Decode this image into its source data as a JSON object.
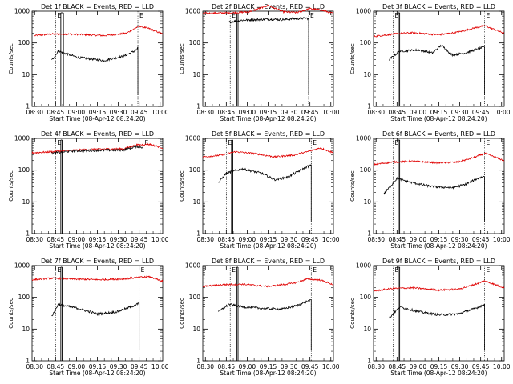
{
  "chart_data": [
    {
      "type": "line",
      "title": "Det 1f BLACK = Events, RED = LLD",
      "ylabel": "Counts/sec",
      "xlabel": "Start Time (08-Apr-12 08:24:20)",
      "xticks": [
        "08:30",
        "08:45",
        "09:00",
        "09:15",
        "09:30",
        "09:45",
        "10:00"
      ],
      "yticks": [
        "1",
        "10",
        "100",
        "1000"
      ],
      "ylim": [
        1,
        1000
      ],
      "yscale": "log",
      "series": [
        {
          "color": "#e00000",
          "anchors": [
            [
              0.02,
              170
            ],
            [
              0.15,
              190
            ],
            [
              0.3,
              190
            ],
            [
              0.55,
              170
            ],
            [
              0.72,
              200
            ],
            [
              0.82,
              340
            ],
            [
              0.9,
              280
            ],
            [
              1.0,
              190
            ]
          ]
        },
        {
          "color": "#000000",
          "anchors": [
            [
              0.15,
              28
            ],
            [
              0.2,
              55
            ],
            [
              0.35,
              35
            ],
            [
              0.55,
              28
            ],
            [
              0.7,
              38
            ],
            [
              0.8,
              60
            ],
            [
              0.81,
              70
            ]
          ]
        }
      ],
      "markers": [
        0.18,
        0.22,
        0.24,
        0.81
      ]
    },
    {
      "type": "line",
      "title": "Det 2f BLACK = Events, RED = LLD",
      "ylabel": "Counts/sec",
      "xlabel": "Start Time (08-Apr-12 08:24:20)",
      "xticks": [
        "08:30",
        "08:45",
        "09:00",
        "09:15",
        "09:30",
        "09:45",
        "10:00"
      ],
      "yticks": [
        "1",
        "10",
        "100",
        "1000"
      ],
      "ylim": [
        1,
        1000
      ],
      "yscale": "log",
      "series": [
        {
          "color": "#e00000",
          "anchors": [
            [
              0.0,
              860
            ],
            [
              0.2,
              880
            ],
            [
              0.35,
              950
            ],
            [
              0.5,
              1500
            ],
            [
              0.62,
              950
            ],
            [
              0.72,
              900
            ],
            [
              0.82,
              1200
            ],
            [
              0.9,
              1100
            ],
            [
              1.0,
              850
            ]
          ]
        },
        {
          "color": "#000000",
          "anchors": [
            [
              0.2,
              450
            ],
            [
              0.3,
              520
            ],
            [
              0.5,
              560
            ],
            [
              0.6,
              540
            ],
            [
              0.7,
              580
            ],
            [
              0.8,
              600
            ],
            [
              0.81,
              550
            ]
          ]
        }
      ],
      "markers": [
        0.21,
        0.26,
        0.27,
        0.81
      ]
    },
    {
      "type": "line",
      "title": "Det 3f BLACK = Events, RED = LLD",
      "ylabel": "Counts/sec",
      "xlabel": "Start Time (08-Apr-12 08:24:20)",
      "xticks": [
        "08:30",
        "08:45",
        "09:00",
        "09:15",
        "09:30",
        "09:45",
        "10:00"
      ],
      "yticks": [
        "1",
        "10",
        "100",
        "1000"
      ],
      "ylim": [
        1,
        1000
      ],
      "yscale": "log",
      "series": [
        {
          "color": "#e00000",
          "anchors": [
            [
              0.0,
              160
            ],
            [
              0.15,
              190
            ],
            [
              0.3,
              210
            ],
            [
              0.5,
              180
            ],
            [
              0.65,
              220
            ],
            [
              0.78,
              300
            ],
            [
              0.85,
              350
            ],
            [
              1.0,
              200
            ]
          ]
        },
        {
          "color": "#000000",
          "anchors": [
            [
              0.12,
              30
            ],
            [
              0.2,
              55
            ],
            [
              0.35,
              60
            ],
            [
              0.45,
              48
            ],
            [
              0.52,
              85
            ],
            [
              0.6,
              42
            ],
            [
              0.7,
              48
            ],
            [
              0.8,
              65
            ],
            [
              0.85,
              75
            ]
          ]
        }
      ],
      "markers": [
        0.15,
        0.19,
        0.2,
        0.85
      ]
    },
    {
      "type": "line",
      "title": "Det 4f BLACK = Events, RED = LLD",
      "ylabel": "Counts/sec",
      "xlabel": "Start Time (08-Apr-12 08:24:20)",
      "xticks": [
        "08:30",
        "08:45",
        "09:00",
        "09:15",
        "09:30",
        "09:45",
        "10:00"
      ],
      "yticks": [
        "1",
        "10",
        "100",
        "1000"
      ],
      "ylim": [
        1,
        1000
      ],
      "yscale": "log",
      "series": [
        {
          "color": "#e00000",
          "anchors": [
            [
              0.0,
              350
            ],
            [
              0.15,
              380
            ],
            [
              0.3,
              420
            ],
            [
              0.5,
              460
            ],
            [
              0.7,
              470
            ],
            [
              0.8,
              620
            ],
            [
              0.9,
              650
            ],
            [
              1.0,
              500
            ]
          ]
        },
        {
          "color": "#000000",
          "anchors": [
            [
              0.15,
              340
            ],
            [
              0.3,
              400
            ],
            [
              0.5,
              420
            ],
            [
              0.7,
              430
            ],
            [
              0.8,
              560
            ],
            [
              0.85,
              520
            ]
          ]
        }
      ],
      "markers": [
        0.18,
        0.22,
        0.23,
        0.85
      ]
    },
    {
      "type": "line",
      "title": "Det 5f BLACK = Events, RED = LLD",
      "ylabel": "Counts/sec",
      "xlabel": "Start Time (08-Apr-12 08:24:20)",
      "xticks": [
        "08:30",
        "08:45",
        "09:00",
        "09:15",
        "09:30",
        "09:45",
        "10:00"
      ],
      "yticks": [
        "1",
        "10",
        "100",
        "1000"
      ],
      "ylim": [
        1,
        1000
      ],
      "yscale": "log",
      "series": [
        {
          "color": "#e00000",
          "anchors": [
            [
              0.0,
              260
            ],
            [
              0.15,
              300
            ],
            [
              0.25,
              380
            ],
            [
              0.4,
              330
            ],
            [
              0.55,
              260
            ],
            [
              0.7,
              300
            ],
            [
              0.8,
              380
            ],
            [
              0.9,
              500
            ],
            [
              1.0,
              350
            ]
          ]
        },
        {
          "color": "#000000",
          "anchors": [
            [
              0.12,
              40
            ],
            [
              0.18,
              80
            ],
            [
              0.3,
              110
            ],
            [
              0.45,
              80
            ],
            [
              0.55,
              50
            ],
            [
              0.65,
              60
            ],
            [
              0.8,
              130
            ],
            [
              0.83,
              140
            ]
          ]
        }
      ],
      "markers": [
        0.18,
        0.22,
        0.23,
        0.83
      ]
    },
    {
      "type": "line",
      "title": "Det 6f BLACK = Events, RED = LLD",
      "ylabel": "Counts/sec",
      "xlabel": "Start Time (08-Apr-12 08:24:20)",
      "xticks": [
        "08:30",
        "08:45",
        "09:00",
        "09:15",
        "09:30",
        "09:45",
        "10:00"
      ],
      "yticks": [
        "1",
        "10",
        "100",
        "1000"
      ],
      "ylim": [
        1,
        1000
      ],
      "yscale": "log",
      "series": [
        {
          "color": "#e00000",
          "anchors": [
            [
              0.0,
              150
            ],
            [
              0.15,
              180
            ],
            [
              0.3,
              190
            ],
            [
              0.5,
              170
            ],
            [
              0.65,
              180
            ],
            [
              0.78,
              260
            ],
            [
              0.85,
              340
            ],
            [
              1.0,
              200
            ]
          ]
        },
        {
          "color": "#000000",
          "anchors": [
            [
              0.08,
              18
            ],
            [
              0.18,
              55
            ],
            [
              0.3,
              40
            ],
            [
              0.45,
              30
            ],
            [
              0.6,
              28
            ],
            [
              0.7,
              35
            ],
            [
              0.8,
              55
            ],
            [
              0.85,
              65
            ]
          ]
        }
      ],
      "markers": [
        0.15,
        0.19,
        0.2,
        0.85
      ]
    },
    {
      "type": "line",
      "title": "Det 7f BLACK = Events, RED = LLD",
      "ylabel": "Counts/sec",
      "xlabel": "Start Time (08-Apr-12 08:24:20)",
      "xticks": [
        "08:30",
        "08:45",
        "09:00",
        "09:15",
        "09:30",
        "09:45",
        "10:00"
      ],
      "yticks": [
        "1",
        "10",
        "100",
        "1000"
      ],
      "ylim": [
        1,
        1000
      ],
      "yscale": "log",
      "series": [
        {
          "color": "#e00000",
          "anchors": [
            [
              0.0,
              360
            ],
            [
              0.15,
              400
            ],
            [
              0.3,
              380
            ],
            [
              0.5,
              360
            ],
            [
              0.7,
              380
            ],
            [
              0.8,
              420
            ],
            [
              0.9,
              450
            ],
            [
              1.0,
              320
            ]
          ]
        },
        {
          "color": "#000000",
          "anchors": [
            [
              0.15,
              25
            ],
            [
              0.2,
              60
            ],
            [
              0.35,
              45
            ],
            [
              0.5,
              30
            ],
            [
              0.65,
              35
            ],
            [
              0.78,
              55
            ],
            [
              0.82,
              65
            ]
          ]
        }
      ],
      "markers": [
        0.18,
        0.22,
        0.23,
        0.82
      ]
    },
    {
      "type": "line",
      "title": "Det 8f BLACK = Events, RED = LLD",
      "ylabel": "Counts/sec",
      "xlabel": "Start Time (08-Apr-12 08:24:20)",
      "xticks": [
        "08:30",
        "08:45",
        "09:00",
        "09:15",
        "09:30",
        "09:45",
        "10:00"
      ],
      "yticks": [
        "1",
        "10",
        "100",
        "1000"
      ],
      "ylim": [
        1,
        1000
      ],
      "yscale": "log",
      "series": [
        {
          "color": "#e00000",
          "anchors": [
            [
              0.0,
              220
            ],
            [
              0.15,
              250
            ],
            [
              0.3,
              260
            ],
            [
              0.5,
              220
            ],
            [
              0.7,
              280
            ],
            [
              0.8,
              380
            ],
            [
              0.9,
              350
            ],
            [
              1.0,
              250
            ]
          ]
        },
        {
          "color": "#000000",
          "anchors": [
            [
              0.12,
              35
            ],
            [
              0.2,
              60
            ],
            [
              0.3,
              50
            ],
            [
              0.45,
              45
            ],
            [
              0.6,
              42
            ],
            [
              0.72,
              55
            ],
            [
              0.8,
              75
            ],
            [
              0.83,
              80
            ]
          ]
        }
      ],
      "markers": [
        0.21,
        0.26,
        0.27,
        0.83
      ]
    },
    {
      "type": "line",
      "title": "Det 9f BLACK = Events, RED = LLD",
      "ylabel": "Counts/sec",
      "xlabel": "Start Time (08-Apr-12 08:24:20)",
      "xticks": [
        "08:30",
        "08:45",
        "09:00",
        "09:15",
        "09:30",
        "09:45",
        "10:00"
      ],
      "yticks": [
        "1",
        "10",
        "100",
        "1000"
      ],
      "ylim": [
        1,
        1000
      ],
      "yscale": "log",
      "series": [
        {
          "color": "#e00000",
          "anchors": [
            [
              0.0,
              160
            ],
            [
              0.15,
              190
            ],
            [
              0.3,
              200
            ],
            [
              0.5,
              170
            ],
            [
              0.65,
              180
            ],
            [
              0.78,
              260
            ],
            [
              0.85,
              330
            ],
            [
              1.0,
              200
            ]
          ]
        },
        {
          "color": "#000000",
          "anchors": [
            [
              0.12,
              22
            ],
            [
              0.2,
              50
            ],
            [
              0.35,
              35
            ],
            [
              0.5,
              28
            ],
            [
              0.65,
              30
            ],
            [
              0.78,
              45
            ],
            [
              0.85,
              60
            ]
          ]
        }
      ],
      "markers": [
        0.15,
        0.19,
        0.2,
        0.85
      ]
    }
  ]
}
